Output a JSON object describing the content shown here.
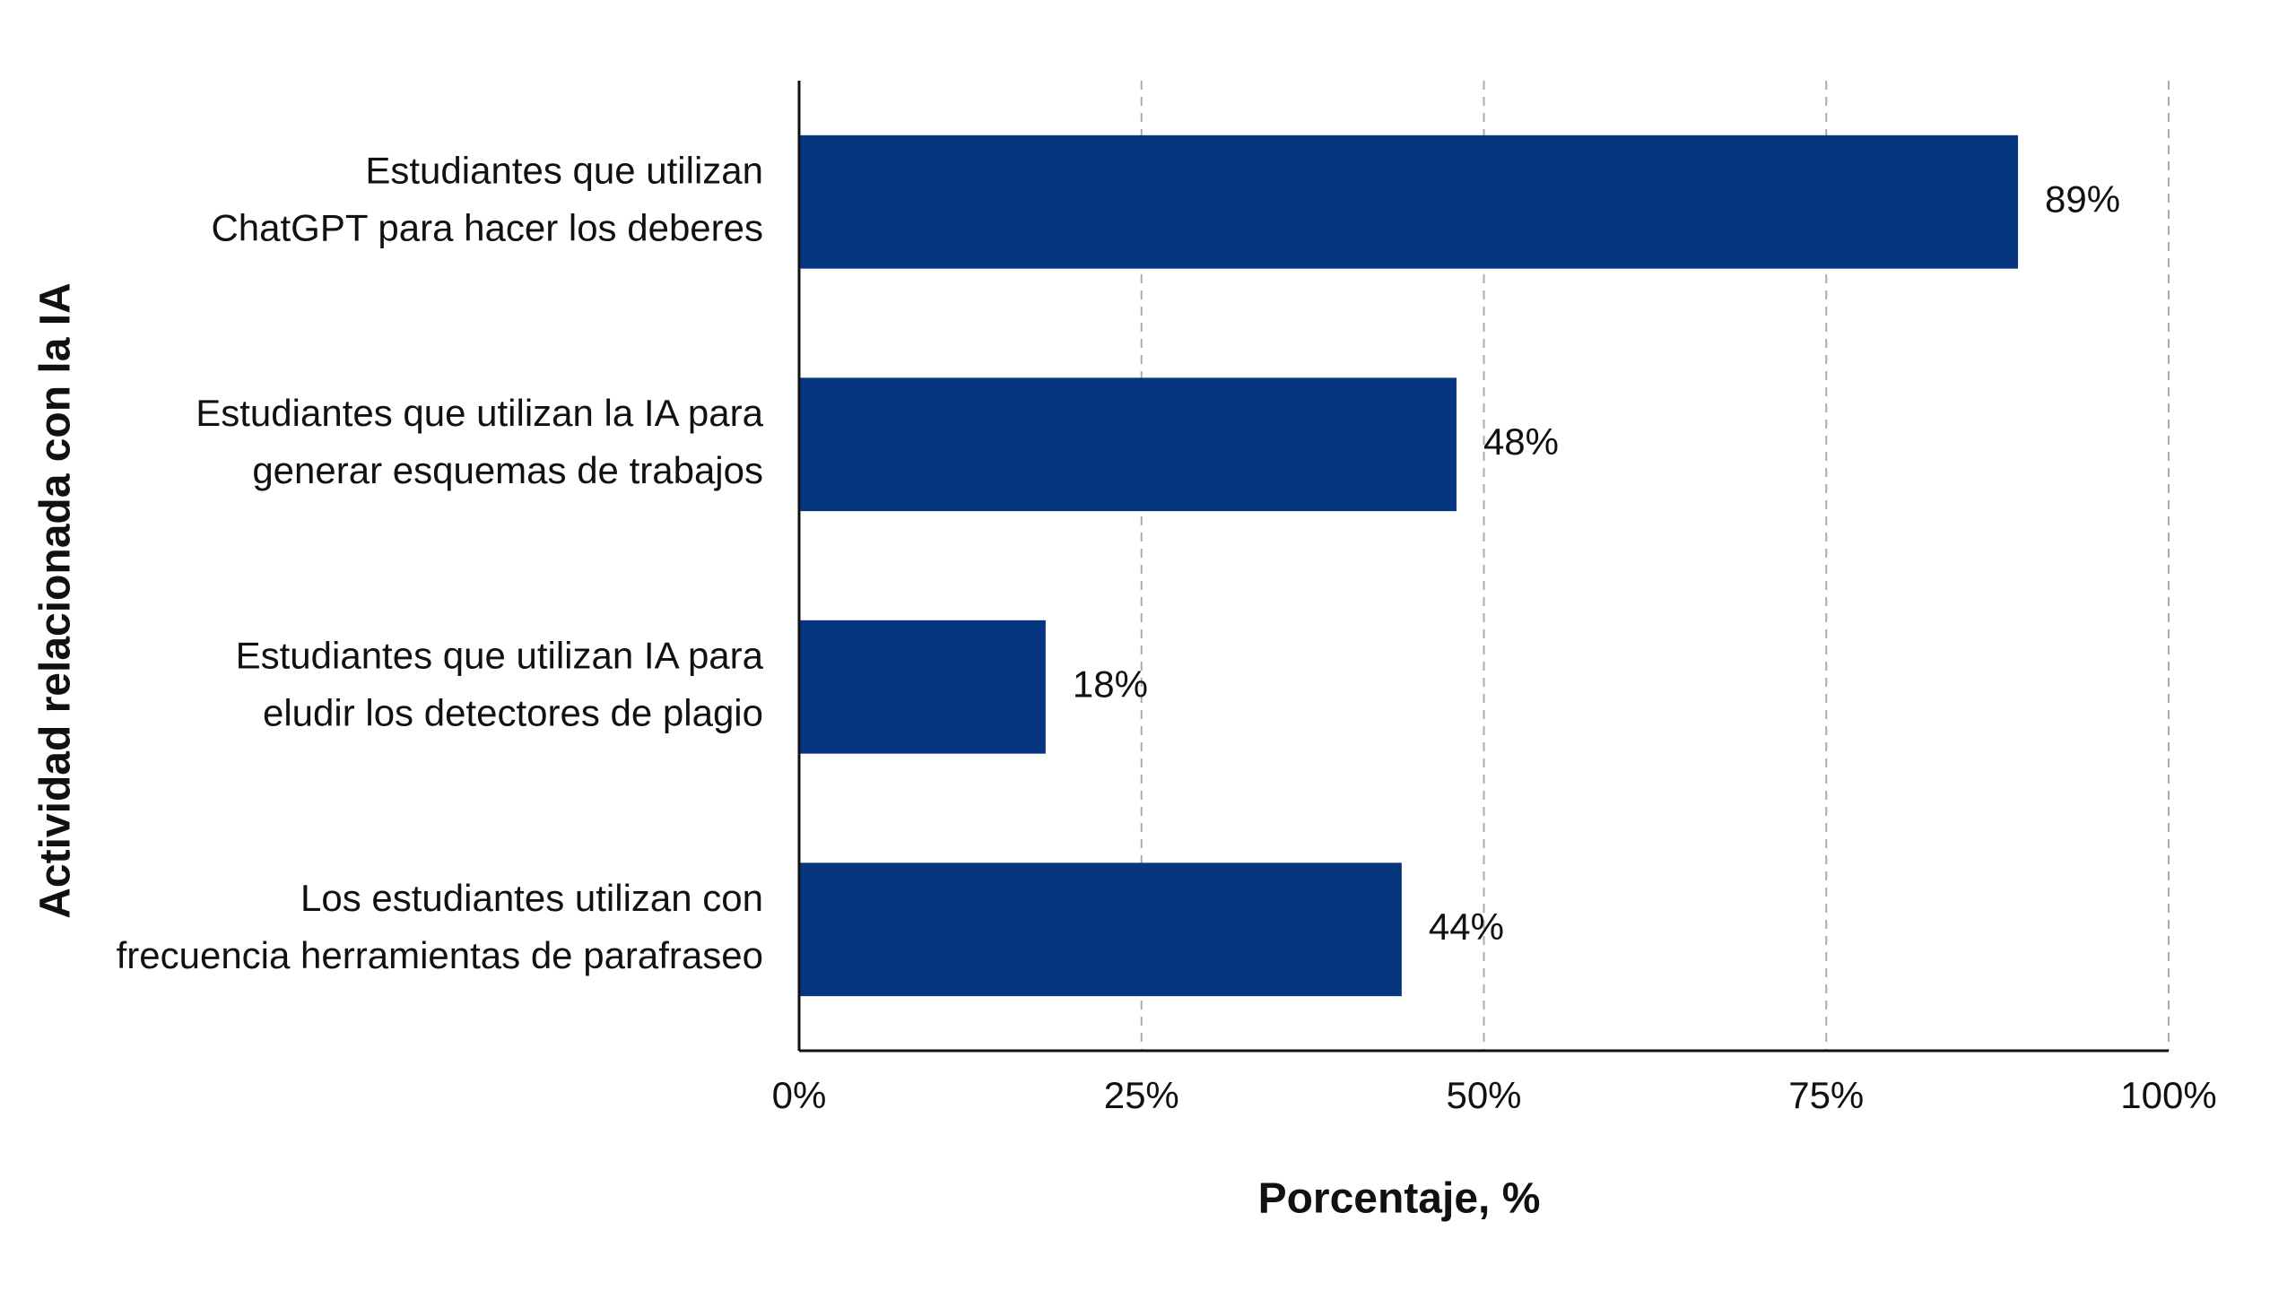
{
  "chart_data": {
    "type": "bar",
    "orientation": "horizontal",
    "x_label": "Porcentaje, %",
    "y_label": "Actividad relacionada con la IA",
    "categories": [
      "Estudiantes que utilizan\nChatGPT para hacer los deberes",
      "Estudiantes que utilizan la IA para\ngenerar esquemas de trabajos",
      "Estudiantes que utilizan IA para\neludir los detectores de plagio",
      "Los estudiantes utilizan con\nfrecuencia herramientas de parafraseo"
    ],
    "values": [
      89,
      48,
      18,
      44
    ],
    "value_labels": [
      "89%",
      "48%",
      "18%",
      "44%"
    ],
    "color": "#073680",
    "xlim": [
      0,
      100
    ],
    "xticks": [
      {
        "value": 0,
        "label": "0%"
      },
      {
        "value": 25,
        "label": "25%"
      },
      {
        "value": 50,
        "label": "50%"
      },
      {
        "value": 75,
        "label": "75%"
      },
      {
        "value": 100,
        "label": "100%"
      }
    ],
    "grid": true
  }
}
